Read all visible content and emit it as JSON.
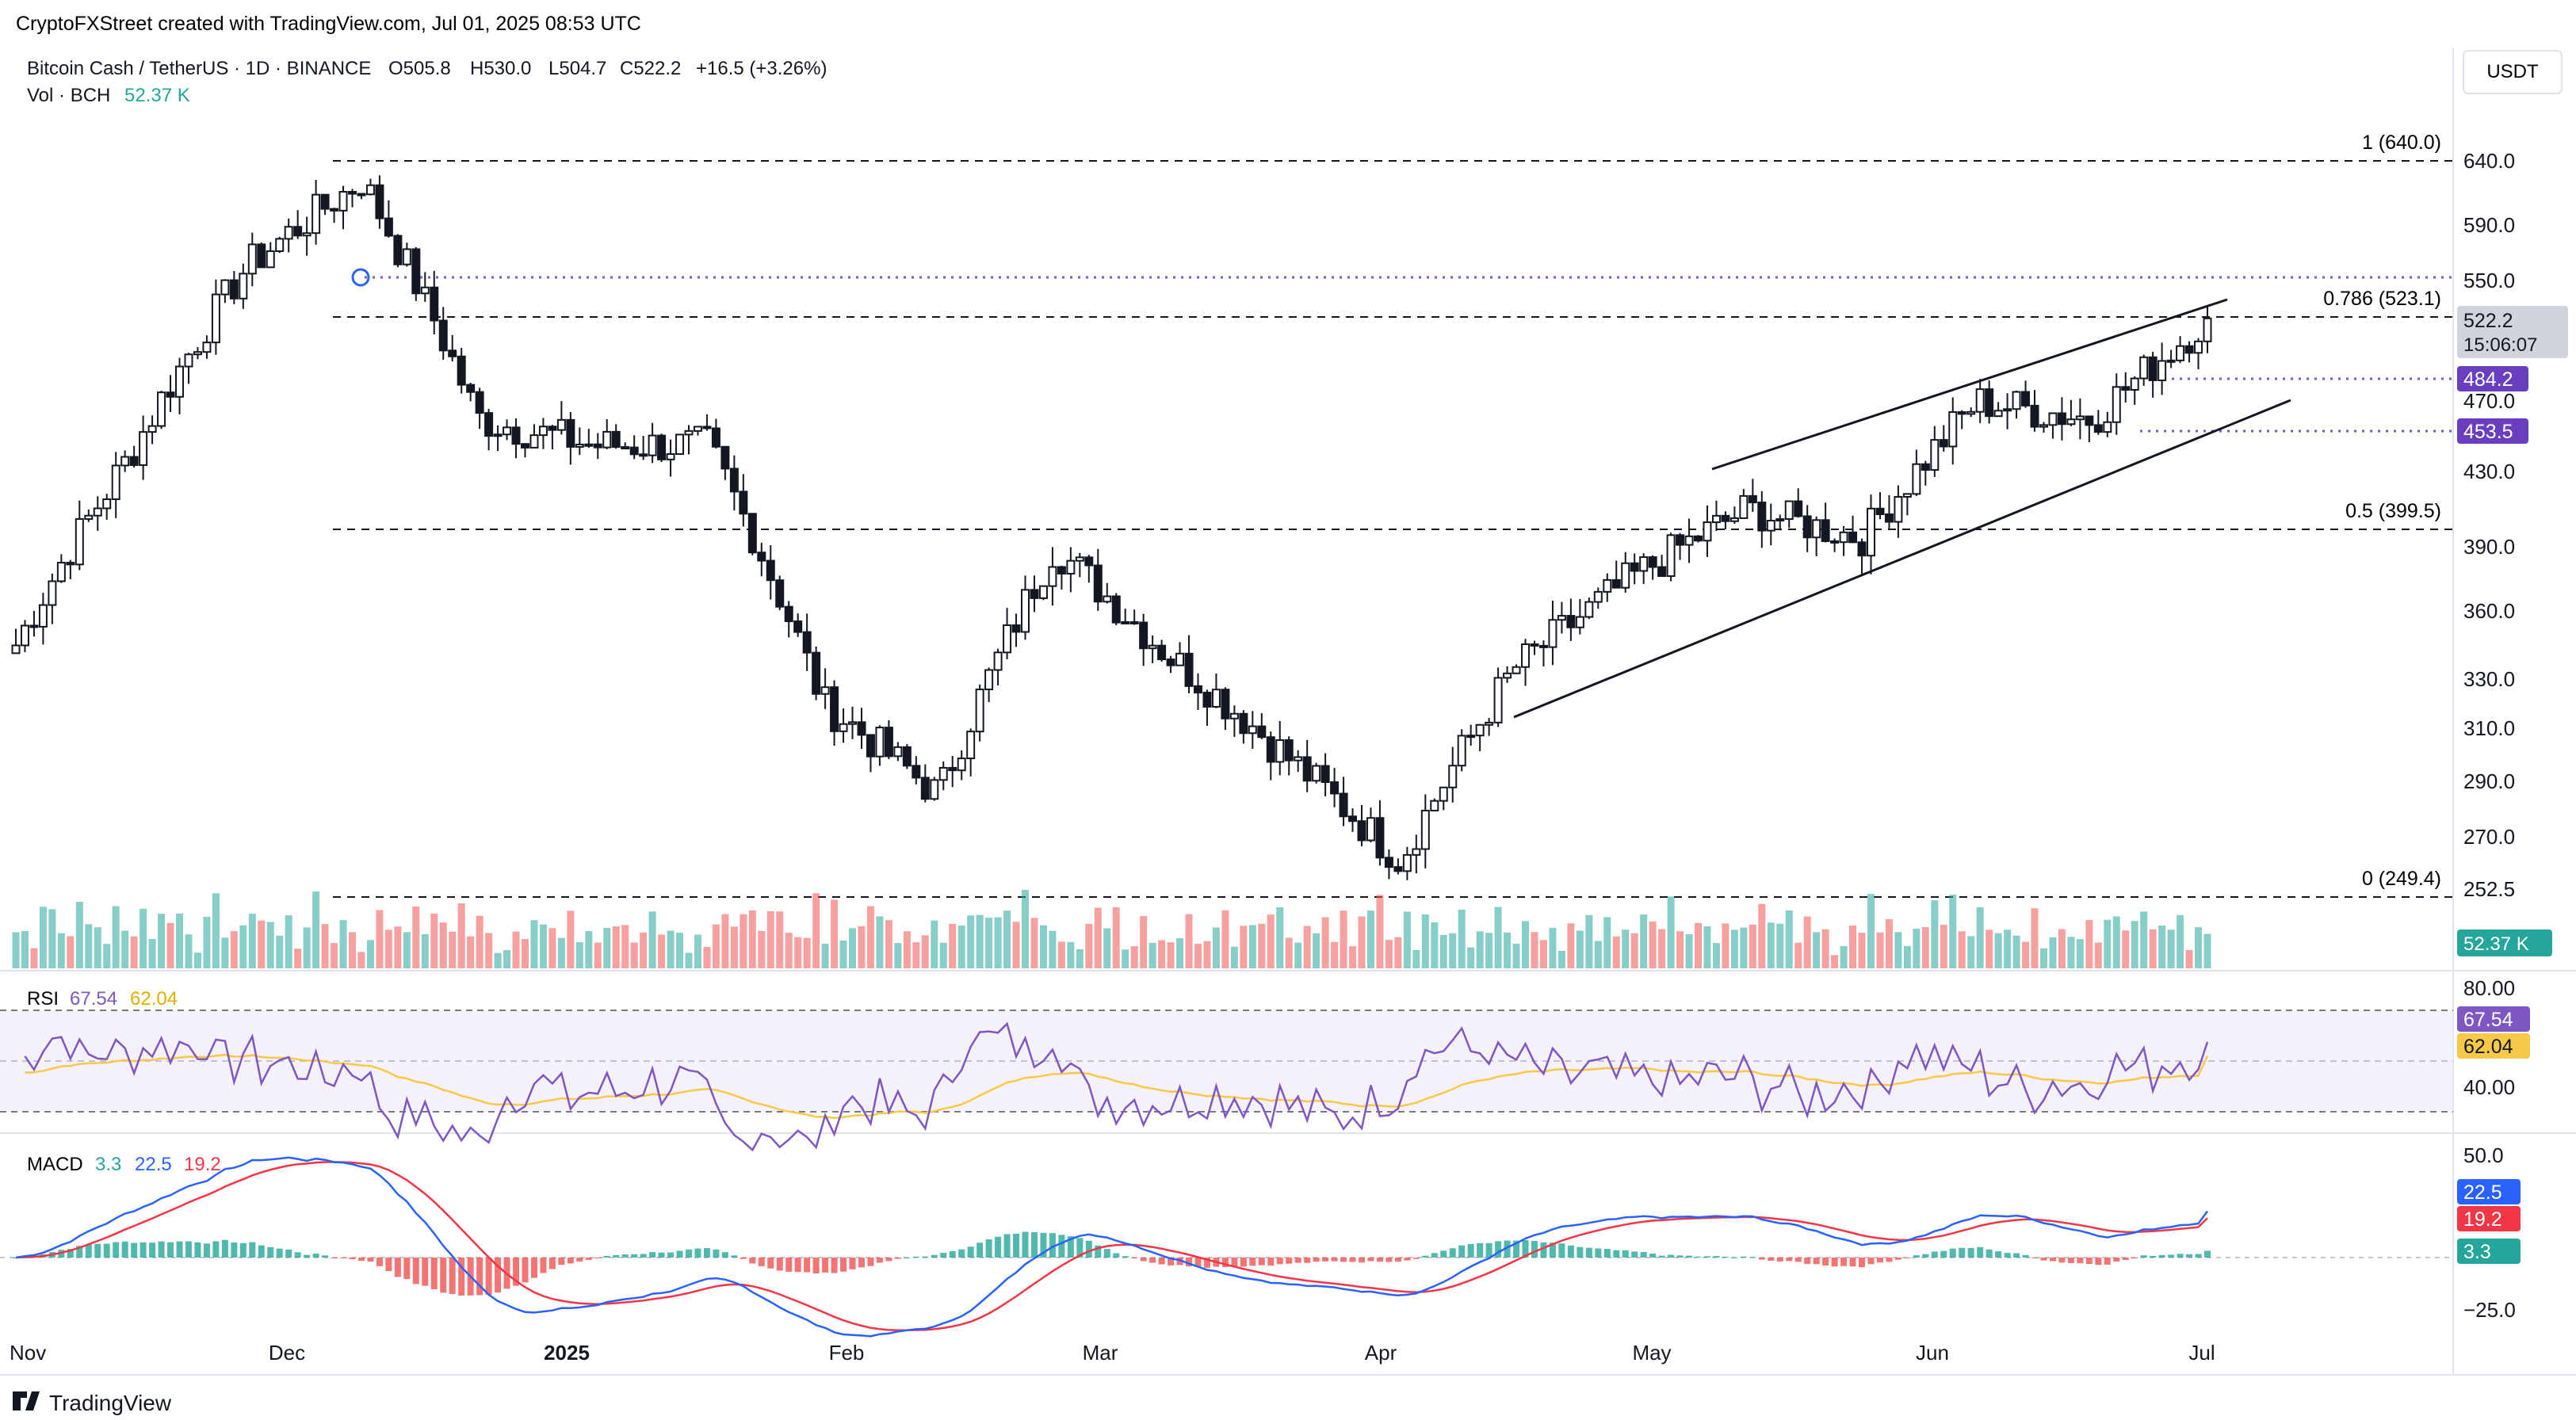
{
  "header": {
    "attribution": "CryptoFXStreet created with TradingView.com, Jul 01, 2025 08:53 UTC",
    "symbol_line": "Bitcoin Cash / TetherUS · 1D · BINANCE",
    "open": "O505.8",
    "high": "H530.0",
    "low": "L504.7",
    "close": "C522.2",
    "change": "+16.5 (+3.26%)",
    "vol_label": "Vol · BCH",
    "vol_value": "52.37 K",
    "currency": "USDT"
  },
  "price_axis": {
    "ticks": [
      "640.0",
      "590.0",
      "550.0",
      "470.0",
      "430.0",
      "390.0",
      "360.0",
      "330.0",
      "310.0",
      "290.0",
      "270.0",
      "252.5"
    ],
    "last_price": "522.2",
    "countdown": "15:06:07",
    "level_484": "484.2",
    "level_453": "453.5",
    "volume_badge": "52.37 K"
  },
  "fib_labels": {
    "f1": "1 (640.0)",
    "f0786": "0.786 (523.1)",
    "f05": "0.5 (399.5)",
    "f0": "0 (249.4)"
  },
  "rsi": {
    "label": "RSI",
    "value": "67.54",
    "ma": "62.04",
    "ticks": [
      "80.00",
      "40.00"
    ]
  },
  "macd": {
    "label": "MACD",
    "hist": "3.3",
    "macd": "22.5",
    "signal": "19.2",
    "ticks": [
      "50.0",
      "−25.0"
    ]
  },
  "time_axis": [
    "Nov",
    "Dec",
    "2025",
    "Feb",
    "Mar",
    "Apr",
    "May",
    "Jun",
    "Jul"
  ],
  "footer": {
    "brand": "TradingView"
  },
  "colors": {
    "up": "#26a69a",
    "down": "#ef5350",
    "candle": "#131722",
    "rsi": "#7e57c2",
    "rsi_ma": "#f7c948",
    "macd": "#2962ff",
    "signal": "#f23645",
    "level": "#7e57c2"
  },
  "chart_data": {
    "type": "candlestick",
    "pair": "BCH/USDT",
    "timeframe": "1D",
    "x_range": [
      "Nov 2024",
      "Jul 2025"
    ],
    "ylim": [
      240,
      650
    ],
    "fibonacci": [
      {
        "level": "1",
        "price": 640.0
      },
      {
        "level": "0.786",
        "price": 523.1
      },
      {
        "level": "0.5",
        "price": 399.5
      },
      {
        "level": "0",
        "price": 249.4
      }
    ],
    "horizontal_levels": [
      484.2,
      453.5
    ],
    "last_close": 522.2,
    "rising_channel": "ascending wedge/channel from Apr to Jul 2025",
    "closes_by_period": [
      {
        "x": "Nov",
        "close": 345
      },
      {
        "x": "Nov (mid)",
        "close": 440
      },
      {
        "x": "Dec",
        "close": 560
      },
      {
        "x": "Dec (peak)",
        "close": 625
      },
      {
        "x": "Dec (late)",
        "close": 460
      },
      {
        "x": "2025",
        "close": 445
      },
      {
        "x": "Jan (late)",
        "close": 445
      },
      {
        "x": "Feb",
        "close": 320
      },
      {
        "x": "Feb (late)",
        "close": 285
      },
      {
        "x": "Mar",
        "close": 390
      },
      {
        "x": "Mar (mid)",
        "close": 340
      },
      {
        "x": "Apr",
        "close": 300
      },
      {
        "x": "Apr (low)",
        "close": 262
      },
      {
        "x": "Apr (late)",
        "close": 335
      },
      {
        "x": "May",
        "close": 375
      },
      {
        "x": "May (mid)",
        "close": 410
      },
      {
        "x": "Jun",
        "close": 395
      },
      {
        "x": "Jun (mid)",
        "close": 470
      },
      {
        "x": "Jun (late)",
        "close": 460
      },
      {
        "x": "Jul",
        "close": 522.2
      }
    ],
    "rsi": {
      "value": 67.54,
      "ma": 62.04,
      "bands": [
        80,
        40
      ]
    },
    "macd": {
      "macd": 22.5,
      "signal": 19.2,
      "histogram": 3.3
    }
  }
}
